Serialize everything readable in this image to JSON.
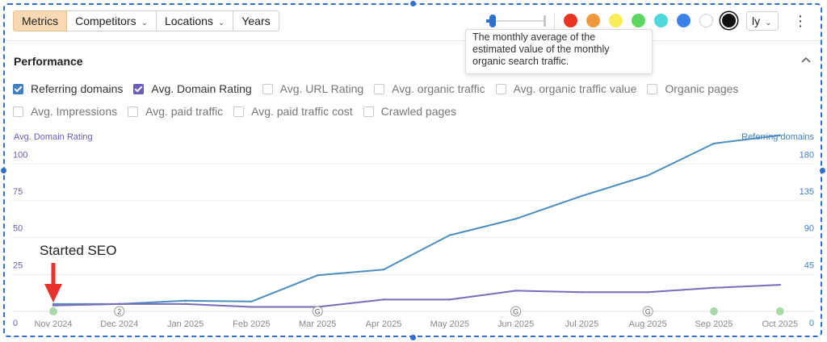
{
  "toolbar": {
    "tabs": [
      {
        "label": "Metrics",
        "active": true,
        "dropdown": false
      },
      {
        "label": "Competitors",
        "active": false,
        "dropdown": true
      },
      {
        "label": "Locations",
        "active": false,
        "dropdown": true
      },
      {
        "label": "Years",
        "active": false,
        "dropdown": false
      }
    ],
    "colors": [
      "#ea3323",
      "#f0993c",
      "#f7ee55",
      "#5cd65c",
      "#4fd8dc",
      "#3b82e8",
      "#ffffff",
      "#111111"
    ],
    "selected_color": "#111111",
    "period_button": "ly",
    "more_icon": "kebab-icon"
  },
  "tooltip": {
    "line1": "The monthly average of the",
    "line2": "estimated value of the monthly",
    "line3": "organic search traffic."
  },
  "panel": {
    "title": "Performance",
    "collapse_icon": "chevron-up-icon"
  },
  "metrics": [
    {
      "label": "Referring domains",
      "checked": true,
      "color": "#3f7fbf"
    },
    {
      "label": "Avg. Domain Rating",
      "checked": true,
      "color": "#6a5cb8"
    },
    {
      "label": "Avg. URL Rating",
      "checked": false
    },
    {
      "label": "Avg. organic traffic",
      "checked": false
    },
    {
      "label": "Avg. organic traffic value",
      "checked": false
    },
    {
      "label": "Organic pages",
      "checked": false
    },
    {
      "label": "Avg. Impressions",
      "checked": false
    },
    {
      "label": "Avg. paid traffic",
      "checked": false
    },
    {
      "label": "Avg. paid traffic cost",
      "checked": false
    },
    {
      "label": "Crawled pages",
      "checked": false
    }
  ],
  "chart_data": {
    "type": "line",
    "x": [
      "Nov 2024",
      "Dec 2024",
      "Jan 2025",
      "Feb 2025",
      "Mar 2025",
      "Apr 2025",
      "May 2025",
      "Jun 2025",
      "Jul 2025",
      "Aug 2025",
      "Sep 2025",
      "Oct 2025"
    ],
    "y_left": {
      "label": "Avg. Domain Rating",
      "ticks": [
        0,
        25,
        50,
        75,
        100
      ],
      "range": [
        0,
        110
      ]
    },
    "y_right": {
      "label": "Referring domains",
      "ticks": [
        0,
        45,
        90,
        135,
        180
      ],
      "range": [
        0,
        198
      ]
    },
    "series": [
      {
        "name": "Referring domains",
        "axis": "right",
        "color": "#4a8ec2",
        "values": [
          9,
          9,
          13,
          12,
          44,
          51,
          93,
          113,
          141,
          166,
          205,
          215
        ]
      },
      {
        "name": "Avg. Domain Rating",
        "axis": "left",
        "color": "#7b6bbd",
        "values": [
          4,
          5,
          5,
          3,
          3,
          8,
          8,
          14,
          13,
          13,
          16,
          18
        ]
      }
    ],
    "event_markers": [
      {
        "x": "Nov 2024",
        "kind": "dot",
        "color": "#a9d9a6"
      },
      {
        "x": "Dec 2024",
        "kind": "label",
        "text": "2"
      },
      {
        "x": "Mar 2025",
        "kind": "label",
        "text": "G"
      },
      {
        "x": "Jun 2025",
        "kind": "label",
        "text": "G"
      },
      {
        "x": "Aug 2025",
        "kind": "label",
        "text": "G"
      },
      {
        "x": "Sep 2025",
        "kind": "dot",
        "color": "#a9d9a6"
      },
      {
        "x": "Oct 2025",
        "kind": "dot",
        "color": "#a9d9a6"
      }
    ],
    "annotation": {
      "text": "Started SEO",
      "x": "Nov 2024",
      "arrow_color": "#e8312a"
    },
    "grid": true
  }
}
